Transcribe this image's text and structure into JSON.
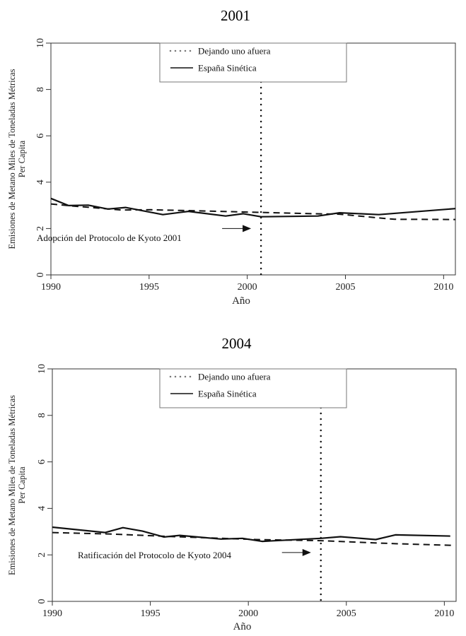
{
  "chart_data": [
    {
      "type": "line",
      "title": "2001",
      "xlabel": "Año",
      "ylabel": [
        "Emisiones de Metano Miles de Toneladas Métricas",
        "Per Capita"
      ],
      "xlim": [
        1990,
        2010.6
      ],
      "ylim": [
        0,
        10
      ],
      "x_ticks": [
        "1990",
        "1995",
        "2000",
        "2005",
        "2010"
      ],
      "y_ticks": [
        "0",
        "2",
        "4",
        "6",
        "8",
        "10"
      ],
      "grid": false,
      "legend": {
        "placement": "top-center",
        "entries": [
          {
            "label": "Dejando uno afuera",
            "style": "dotted"
          },
          {
            "label": "España Sinética",
            "style": "solid"
          }
        ]
      },
      "series": [
        {
          "style": "solid",
          "x": [
            1990,
            1990.9,
            1991.9,
            1992.9,
            1993.8,
            1995.7,
            1997.0,
            1998.9,
            1999.8,
            2000.7,
            2003.6,
            2004.7,
            2006.7,
            2010.6
          ],
          "y": [
            3.3,
            2.99,
            3.01,
            2.84,
            2.91,
            2.6,
            2.74,
            2.54,
            2.64,
            2.51,
            2.54,
            2.68,
            2.6,
            2.86
          ]
        },
        {
          "style": "dashed",
          "x": [
            1990,
            1991,
            1993.6,
            1995.1,
            1999.2,
            2003.3,
            2004.7,
            2006.8,
            2007.5,
            2010.6
          ],
          "y": [
            3.06,
            2.98,
            2.8,
            2.81,
            2.73,
            2.64,
            2.62,
            2.45,
            2.4,
            2.39
          ]
        }
      ],
      "vline": {
        "x": 2000.7,
        "style": "dotted"
      },
      "annotation": {
        "text": "Adopción del Protocolo de Kyoto 2001",
        "arrow_y": 2.0
      }
    },
    {
      "type": "line",
      "title": "2004",
      "xlabel": "Año",
      "ylabel": [
        "Emisiones de Metano Miles de Toneladas Métricas",
        "Per Capita"
      ],
      "xlim": [
        1990,
        2010.6
      ],
      "ylim": [
        0,
        10
      ],
      "x_ticks": [
        "1990",
        "1995",
        "2000",
        "2005",
        "2010"
      ],
      "y_ticks": [
        "0",
        "2",
        "4",
        "6",
        "8",
        "10"
      ],
      "grid": false,
      "legend": {
        "placement": "top-center",
        "entries": [
          {
            "label": "Dejando uno afuera",
            "style": "dotted"
          },
          {
            "label": "España Sinética",
            "style": "solid"
          }
        ]
      },
      "series": [
        {
          "style": "solid",
          "x": [
            1990,
            1992.7,
            1993.6,
            1994.6,
            1995.7,
            1996.5,
            1998.6,
            1999.7,
            2000.7,
            2003.7,
            2004.7,
            2006.5,
            2007.5,
            2010.3
          ],
          "y": [
            3.19,
            2.96,
            3.17,
            3.02,
            2.77,
            2.84,
            2.68,
            2.71,
            2.58,
            2.71,
            2.78,
            2.66,
            2.86,
            2.81
          ]
        },
        {
          "style": "dashed",
          "x": [
            1990,
            1992.9,
            1995.7,
            2000.4,
            2003.7,
            2007.5,
            2010.4
          ],
          "y": [
            2.96,
            2.9,
            2.8,
            2.66,
            2.61,
            2.48,
            2.41
          ]
        }
      ],
      "vline": {
        "x": 2003.7,
        "style": "dotted"
      },
      "annotation": {
        "text": "Ratificación del Protocolo de Kyoto 2004",
        "arrow_y": 2.1
      }
    }
  ]
}
